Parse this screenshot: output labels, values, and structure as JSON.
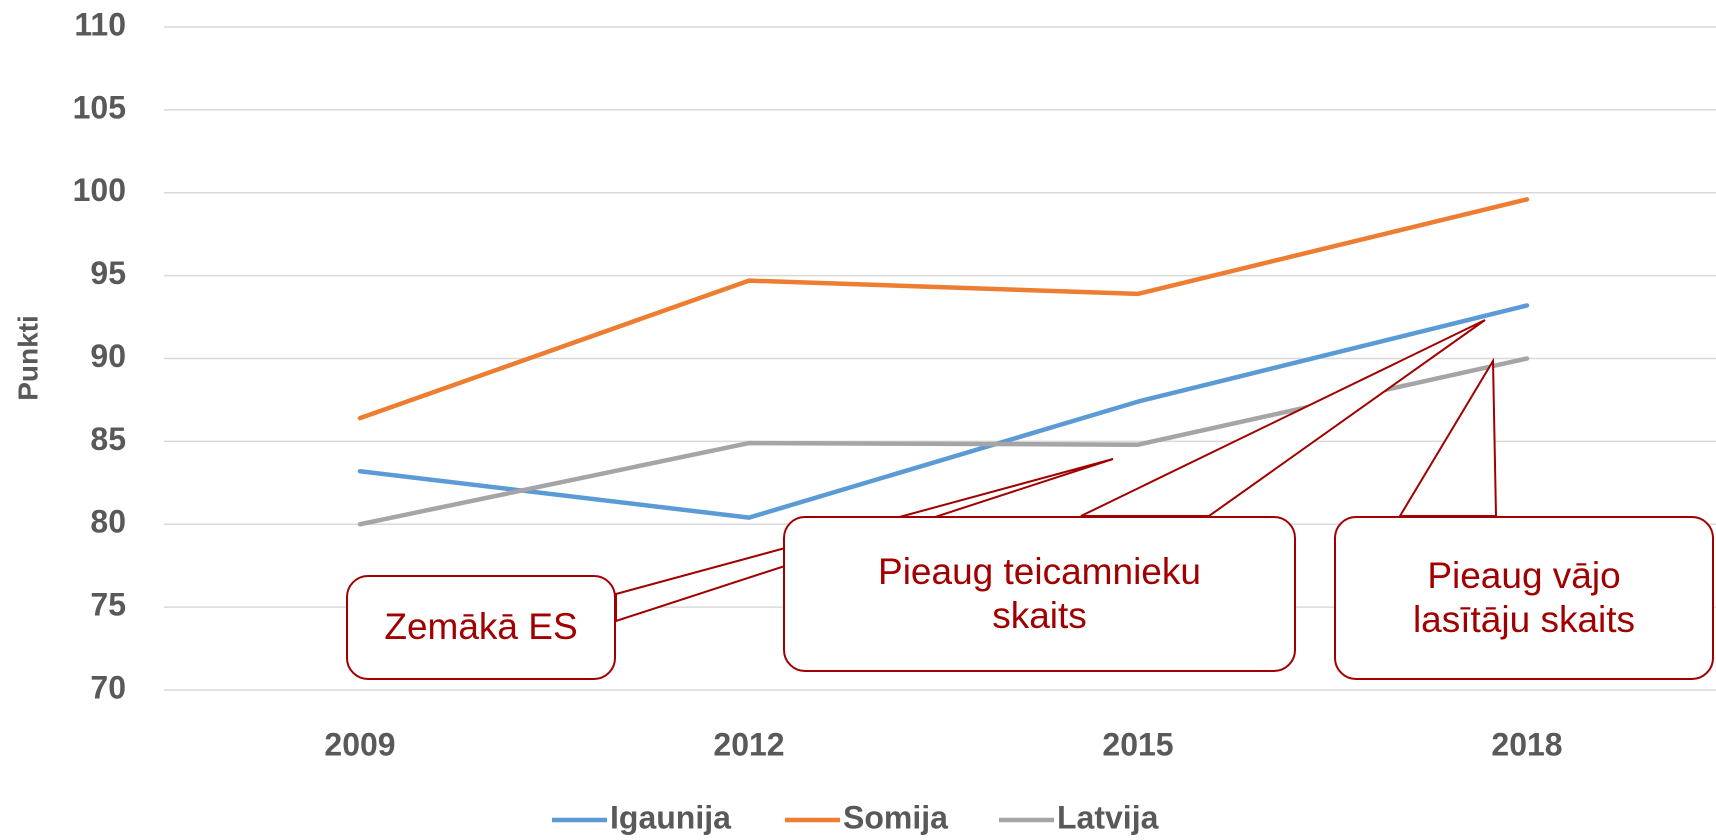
{
  "chart_data": {
    "type": "line",
    "y_label": "Punkti",
    "categories": [
      "2009",
      "2012",
      "2015",
      "2018"
    ],
    "series": [
      {
        "name": "Igaunija",
        "color": "#5b9bd5",
        "values": [
          83.2,
          80.4,
          87.4,
          93.2
        ]
      },
      {
        "name": "Somija",
        "color": "#ed7d31",
        "values": [
          86.4,
          94.7,
          93.9,
          99.6
        ]
      },
      {
        "name": "Latvija",
        "color": "#a5a5a5",
        "values": [
          80,
          84.9,
          84.8,
          90
        ]
      }
    ],
    "ylim": [
      70,
      110
    ],
    "yticks": [
      70,
      75,
      80,
      85,
      90,
      95,
      100,
      105,
      110
    ],
    "grid": true,
    "legend": "bottom",
    "annotations": [
      {
        "text": "Zemākā ES"
      },
      {
        "text": "Pieaug teicamnieku skaits"
      },
      {
        "text": "Pieaug vājo lasītāju skaits"
      }
    ]
  }
}
